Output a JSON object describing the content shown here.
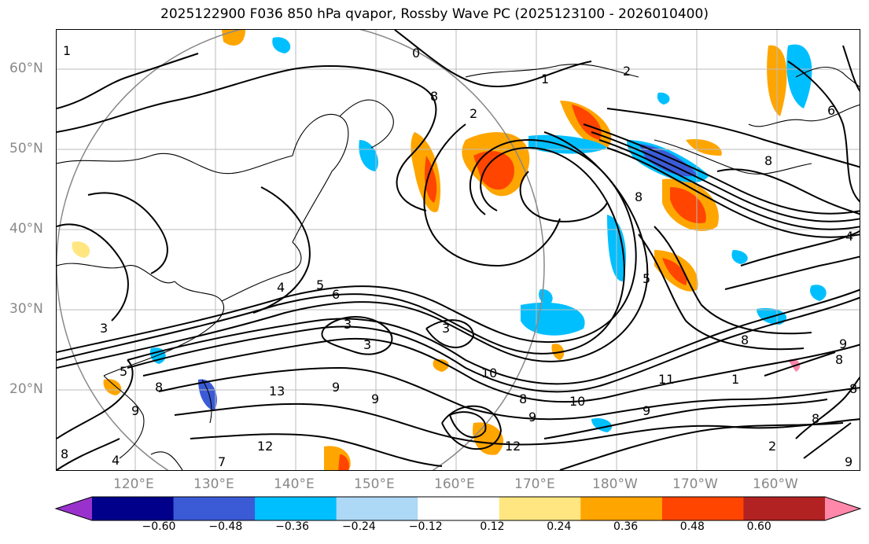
{
  "title": "2025122900 F036 850 hPa qvapor, Rossby Wave PC (2025123100 - 2026010400)",
  "lat_labels": [
    "60°N",
    "50°N",
    "40°N",
    "30°N",
    "20°N"
  ],
  "lon_labels": [
    "120°E",
    "130°E",
    "140°E",
    "150°E",
    "160°E",
    "170°E",
    "180°W",
    "170°W",
    "160°W"
  ],
  "colorbar": {
    "ticks": [
      "−0.60",
      "−0.48",
      "−0.36",
      "−0.24",
      "−0.12",
      "0.12",
      "0.24",
      "0.36",
      "0.48",
      "0.60"
    ],
    "colors": [
      "#9932cc",
      "#00008b",
      "#3b5bd6",
      "#00bfff",
      "#add8f6",
      "#ffffff",
      "#ffe680",
      "#ffa500",
      "#ff4500",
      "#b22222",
      "#ff88aa"
    ]
  },
  "contour_labels": [
    "1",
    "0",
    "2",
    "8",
    "6",
    "1",
    "2",
    "8",
    "5",
    "6",
    "4",
    "5",
    "3",
    "3",
    "3",
    "3",
    "9",
    "10",
    "11",
    "10",
    "9",
    "8",
    "12",
    "13",
    "9",
    "12",
    "8",
    "8",
    "9",
    "8",
    "8",
    "1",
    "8",
    "9",
    "5",
    "4",
    "9",
    "8",
    "7",
    "2",
    "4",
    "8",
    "9"
  ],
  "colors": {
    "pos1": "#ffe680",
    "pos2": "#ffa500",
    "pos3": "#ff4500",
    "pos4": "#b22222",
    "neg1": "#add8f6",
    "neg2": "#00bfff",
    "neg3": "#3b5bd6",
    "neg4": "#00008b"
  }
}
